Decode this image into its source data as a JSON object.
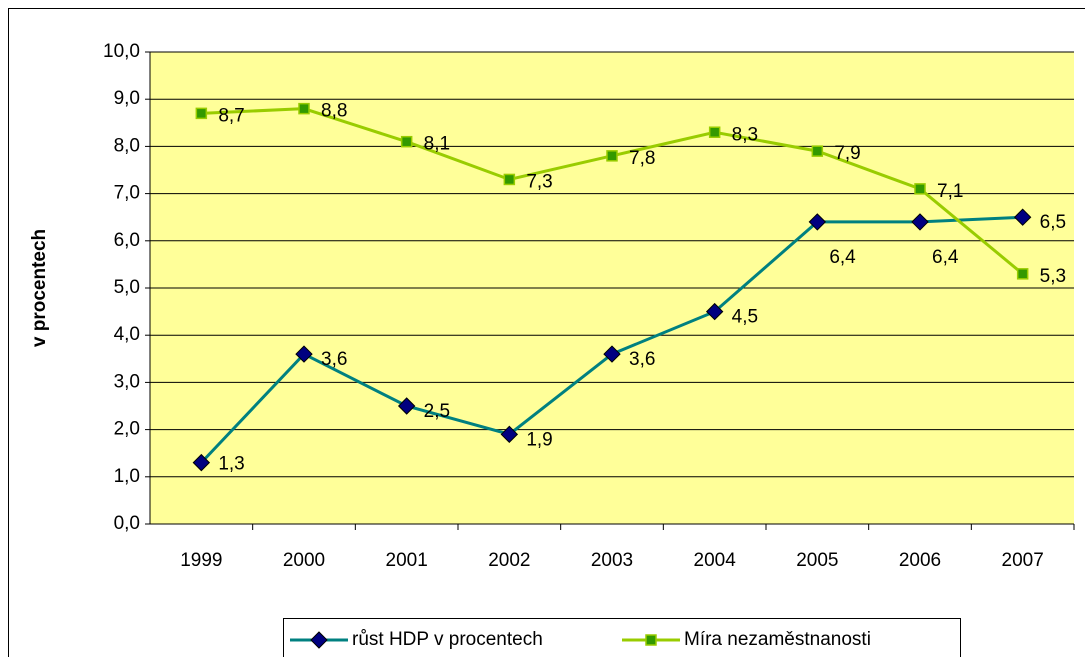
{
  "chart_data": {
    "type": "line",
    "y_label": "v procentech",
    "categories": [
      "1999",
      "2000",
      "2001",
      "2002",
      "2003",
      "2004",
      "2005",
      "2006",
      "2007"
    ],
    "series": [
      {
        "name": "růst HDP v procentech",
        "color": "#008080",
        "marker_color": "#000080",
        "values": [
          1.3,
          3.6,
          2.5,
          1.9,
          3.6,
          4.5,
          6.4,
          6.4,
          6.5
        ],
        "value_labels": [
          "1,3",
          "3,6",
          "2,5",
          "1,9",
          "3,6",
          "4,5",
          "6,4",
          "6,4",
          "6,5"
        ]
      },
      {
        "name": "Míra nezaměstnanosti",
        "color": "#99CC00",
        "marker_color": "#339900",
        "values": [
          8.7,
          8.8,
          8.1,
          7.3,
          7.8,
          8.3,
          7.9,
          7.1,
          5.3
        ],
        "value_labels": [
          "8,7",
          "8,8",
          "8,1",
          "7,3",
          "7,8",
          "8,3",
          "7,9",
          "7,1",
          "5,3"
        ]
      }
    ],
    "ylim": [
      0,
      10
    ],
    "yticks": [
      {
        "value": 0,
        "label": "0,0"
      },
      {
        "value": 1,
        "label": "1,0"
      },
      {
        "value": 2,
        "label": "2,0"
      },
      {
        "value": 3,
        "label": "3,0"
      },
      {
        "value": 4,
        "label": "4,0"
      },
      {
        "value": 5,
        "label": "5,0"
      },
      {
        "value": 6,
        "label": "6,0"
      },
      {
        "value": 7,
        "label": "7,0"
      },
      {
        "value": 8,
        "label": "8,0"
      },
      {
        "value": 9,
        "label": "9,0"
      },
      {
        "value": 10,
        "label": "10,0"
      }
    ],
    "grid": true,
    "legend": "bottom",
    "plot_background": "#FFFF99"
  }
}
